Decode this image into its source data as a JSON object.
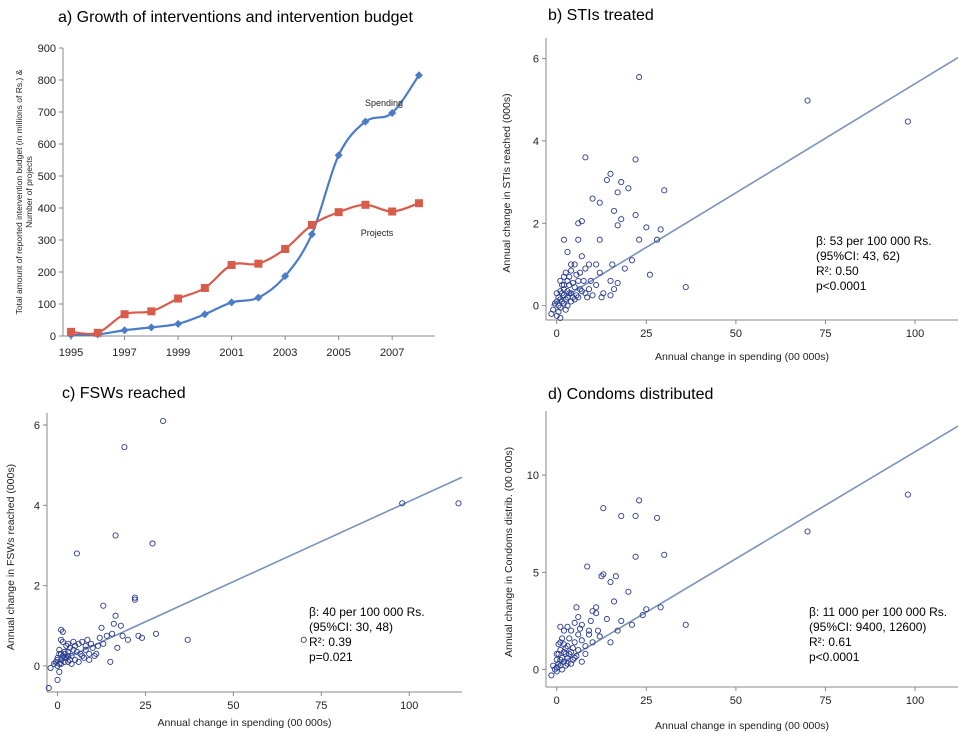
{
  "chart_data": [
    {
      "type": "line",
      "title": "a) Growth of interventions and intervention budget",
      "ylabel_line1": "Total amount of reported intervention budget (in millions of Rs.) &",
      "ylabel_line2": "Number of projects",
      "xlim": [
        1994.7,
        2008.6
      ],
      "ylim": [
        0,
        900
      ],
      "yticks": [
        "0",
        "100",
        "200",
        "300",
        "400",
        "500",
        "600",
        "700",
        "800",
        "900"
      ],
      "xticks": [
        "1995",
        "1997",
        "1999",
        "2001",
        "2003",
        "2005",
        "2007"
      ],
      "x": [
        1995,
        1996,
        1997,
        1998,
        1999,
        2000,
        2001,
        2002,
        2003,
        2004,
        2005,
        2006,
        2007,
        2008
      ],
      "series": [
        {
          "name": "Spending",
          "color": "#4a7cc7",
          "marker": "diamond",
          "values": [
            3,
            5,
            18,
            27,
            38,
            68,
            105,
            120,
            187,
            318,
            565,
            670,
            697,
            815
          ]
        },
        {
          "name": "Projects",
          "color": "#d95c4b",
          "marker": "square",
          "values": [
            13,
            10,
            68,
            77,
            117,
            150,
            222,
            226,
            272,
            347,
            387,
            410,
            389,
            415
          ]
        }
      ],
      "legend_labels": {
        "spending": "Spending",
        "projects": "Projects"
      }
    },
    {
      "type": "scatter",
      "title": "b) STIs treated",
      "xlabel": "Annual change in spending (00 000s)",
      "ylabel": "Annual change in STIs reached (000s)",
      "xlim": [
        -3,
        112
      ],
      "ylim": [
        -0.35,
        6.5
      ],
      "xticks": [
        "0",
        "25",
        "50",
        "75",
        "100"
      ],
      "yticks": [
        "0",
        "2",
        "4",
        "6"
      ],
      "fit": {
        "intercept": 0.09,
        "slope": 0.053
      },
      "stats": {
        "beta": "β: 53 per 100 000 Rs.",
        "ci": "(95%CI: 43, 62)",
        "r2": "R²: 0.50",
        "p": "p<0.0001"
      },
      "points": [
        [
          -1.5,
          -0.2
        ],
        [
          -1,
          -0.1
        ],
        [
          -0.5,
          0.05
        ],
        [
          0,
          0.1
        ],
        [
          0.5,
          0.0
        ],
        [
          0.5,
          0.2
        ],
        [
          1,
          0.15
        ],
        [
          1,
          -0.05
        ],
        [
          1.5,
          0.3
        ],
        [
          1.5,
          0.1
        ],
        [
          2,
          0.05
        ],
        [
          2,
          0.25
        ],
        [
          2,
          0.4
        ],
        [
          2.5,
          0.15
        ],
        [
          2.5,
          -0.1
        ],
        [
          3,
          0.6
        ],
        [
          3,
          0.35
        ],
        [
          3,
          0.2
        ],
        [
          3.5,
          0.7
        ],
        [
          3.5,
          0.5
        ],
        [
          4,
          0.3
        ],
        [
          4,
          0.85
        ],
        [
          4.5,
          0.2
        ],
        [
          5,
          1.0
        ],
        [
          5,
          0.45
        ],
        [
          5.5,
          0.75
        ],
        [
          6,
          0.2
        ],
        [
          6,
          1.6
        ],
        [
          6,
          2.0
        ],
        [
          6.5,
          0.4
        ],
        [
          7,
          2.05
        ],
        [
          7,
          1.2
        ],
        [
          7.5,
          0.6
        ],
        [
          8,
          0.3
        ],
        [
          8,
          3.6
        ],
        [
          8.5,
          0.2
        ],
        [
          9,
          0.4
        ],
        [
          9,
          1.0
        ],
        [
          10,
          0.25
        ],
        [
          10,
          2.6
        ],
        [
          11,
          1.0
        ],
        [
          11,
          0.5
        ],
        [
          12,
          0.8
        ],
        [
          12,
          1.6
        ],
        [
          12,
          2.5
        ],
        [
          13,
          0.3
        ],
        [
          14,
          3.05
        ],
        [
          15,
          0.25
        ],
        [
          15,
          3.2
        ],
        [
          15,
          0.6
        ],
        [
          16,
          2.3
        ],
        [
          16,
          0.4
        ],
        [
          17,
          0.55
        ],
        [
          17,
          2.75
        ],
        [
          17,
          1.95
        ],
        [
          18,
          2.1
        ],
        [
          18,
          3.0
        ],
        [
          19,
          0.9
        ],
        [
          20,
          2.85
        ],
        [
          21,
          1.1
        ],
        [
          22,
          2.2
        ],
        [
          22,
          3.55
        ],
        [
          23,
          5.55
        ],
        [
          23,
          1.6
        ],
        [
          25,
          1.9
        ],
        [
          26,
          0.75
        ],
        [
          28,
          1.6
        ],
        [
          29,
          1.85
        ],
        [
          30,
          2.8
        ],
        [
          36,
          0.45
        ],
        [
          70,
          4.98
        ],
        [
          98,
          4.47
        ],
        [
          0,
          -0.25
        ],
        [
          1,
          -0.3
        ],
        [
          2,
          0.5
        ],
        [
          3,
          0.0
        ],
        [
          4,
          0.1
        ],
        [
          5,
          0.15
        ],
        [
          6,
          0.6
        ],
        [
          7,
          0.35
        ],
        [
          1,
          0.35
        ],
        [
          2,
          0.7
        ],
        [
          0.5,
          -0.15
        ],
        [
          1.5,
          0.5
        ],
        [
          3.5,
          0.3
        ],
        [
          4.5,
          0.55
        ],
        [
          5.5,
          0.25
        ],
        [
          6.5,
          0.8
        ],
        [
          8,
          0.9
        ],
        [
          9.5,
          0.6
        ],
        [
          2,
          1.6
        ],
        [
          3,
          1.3
        ],
        [
          12.5,
          0.2
        ],
        [
          15.5,
          1.0
        ],
        [
          0,
          0.3
        ],
        [
          1,
          0.6
        ],
        [
          2.5,
          0.8
        ],
        [
          4,
          1.0
        ]
      ]
    },
    {
      "type": "scatter",
      "title": "c) FSWs reached",
      "xlabel": "Annual change in spending (00 000s)",
      "ylabel": "Annual change in FSWs reached (000s)",
      "xlim": [
        -3,
        115
      ],
      "ylim": [
        -0.65,
        6.3
      ],
      "xticks": [
        "0",
        "25",
        "50",
        "75",
        "100"
      ],
      "yticks": [
        "0",
        "2",
        "4",
        "6"
      ],
      "fit": {
        "intercept": 0.1,
        "slope": 0.04
      },
      "stats": {
        "beta": "β: 40 per 100 000 Rs.",
        "ci": "(95%CI: 30, 48)",
        "r2": "R²: 0.39",
        "p": "p=0.021"
      },
      "points": [
        [
          -2.5,
          -0.55
        ],
        [
          -2,
          -0.05
        ],
        [
          -1,
          0.05
        ],
        [
          -0.5,
          0.1
        ],
        [
          0,
          0.0
        ],
        [
          0,
          0.2
        ],
        [
          0.5,
          -0.15
        ],
        [
          0.5,
          0.3
        ],
        [
          0.5,
          0.05
        ],
        [
          1,
          0.9
        ],
        [
          1,
          0.65
        ],
        [
          1,
          0.15
        ],
        [
          1.5,
          0.85
        ],
        [
          1.5,
          0.25
        ],
        [
          2,
          0.1
        ],
        [
          2,
          0.3
        ],
        [
          2.5,
          0.2
        ],
        [
          2.5,
          0.5
        ],
        [
          3,
          0.1
        ],
        [
          3,
          0.35
        ],
        [
          3.5,
          0.45
        ],
        [
          4,
          0.25
        ],
        [
          4.5,
          0.6
        ],
        [
          5,
          0.5
        ],
        [
          5,
          0.15
        ],
        [
          5.5,
          2.8
        ],
        [
          5.5,
          0.35
        ],
        [
          6,
          0.55
        ],
        [
          6.5,
          0.3
        ],
        [
          7,
          0.6
        ],
        [
          7.5,
          0.2
        ],
        [
          8,
          0.4
        ],
        [
          8.5,
          0.65
        ],
        [
          9,
          0.3
        ],
        [
          9.5,
          0.55
        ],
        [
          10,
          0.45
        ],
        [
          11,
          0.3
        ],
        [
          12,
          0.7
        ],
        [
          12.5,
          0.95
        ],
        [
          13,
          1.5
        ],
        [
          13,
          0.55
        ],
        [
          14,
          0.75
        ],
        [
          15,
          0.1
        ],
        [
          15.5,
          0.8
        ],
        [
          16,
          1.05
        ],
        [
          16.5,
          3.25
        ],
        [
          16.5,
          1.25
        ],
        [
          17,
          0.45
        ],
        [
          18,
          1.0
        ],
        [
          18.5,
          0.75
        ],
        [
          19,
          5.45
        ],
        [
          20,
          0.65
        ],
        [
          22,
          1.65
        ],
        [
          22,
          1.7
        ],
        [
          23,
          0.75
        ],
        [
          24,
          0.7
        ],
        [
          27,
          3.05
        ],
        [
          28,
          0.8
        ],
        [
          30,
          6.1
        ],
        [
          37,
          0.65
        ],
        [
          70,
          0.65
        ],
        [
          98,
          4.05
        ],
        [
          114,
          4.05
        ],
        [
          0,
          -0.35
        ],
        [
          1,
          0.05
        ],
        [
          2,
          0.2
        ],
        [
          3,
          0.55
        ],
        [
          4,
          0.05
        ],
        [
          6,
          0.1
        ],
        [
          7,
          0.25
        ],
        [
          0.5,
          0.4
        ],
        [
          1.5,
          0.6
        ],
        [
          3.5,
          0.15
        ],
        [
          4.5,
          0.4
        ],
        [
          8,
          0.5
        ],
        [
          9,
          0.15
        ],
        [
          10.5,
          0.25
        ],
        [
          11.5,
          0.5
        ],
        [
          2,
          0.35
        ],
        [
          3,
          0.25
        ],
        [
          0,
          0.15
        ],
        [
          1,
          0.3
        ]
      ]
    },
    {
      "type": "scatter",
      "title": "d) Condoms distributed",
      "xlabel": "Annual change in spending (00 000s)",
      "ylabel": "Annual change in Condoms distrib. (00 000s)",
      "xlim": [
        -3,
        112
      ],
      "ylim": [
        -0.9,
        13.3
      ],
      "xticks": [
        "0",
        "25",
        "50",
        "75",
        "100"
      ],
      "yticks": [
        "0",
        "5",
        "10"
      ],
      "fit": {
        "intercept": 0.2,
        "slope": 0.11
      },
      "stats": {
        "beta": "β: 11 000 per 100 000 Rs.",
        "ci": "(95%CI: 9400, 12600)",
        "r2": "R²: 0.61",
        "p": "p<0.0001"
      },
      "points": [
        [
          -1.5,
          -0.3
        ],
        [
          -1,
          0.2
        ],
        [
          -0.5,
          0.0
        ],
        [
          0,
          0.5
        ],
        [
          0,
          -0.1
        ],
        [
          0.5,
          0.3
        ],
        [
          0.5,
          0.8
        ],
        [
          1,
          1.0
        ],
        [
          1,
          0.2
        ],
        [
          1,
          2.2
        ],
        [
          1.5,
          0.6
        ],
        [
          1.5,
          0.0
        ],
        [
          2,
          1.3
        ],
        [
          2,
          0.4
        ],
        [
          2.5,
          0.8
        ],
        [
          2.5,
          1.1
        ],
        [
          3,
          2.2
        ],
        [
          3,
          0.3
        ],
        [
          3.5,
          1.6
        ],
        [
          4,
          0.9
        ],
        [
          4,
          2.0
        ],
        [
          4.5,
          0.5
        ],
        [
          5,
          2.4
        ],
        [
          5,
          1.4
        ],
        [
          5.5,
          3.2
        ],
        [
          5.5,
          0.7
        ],
        [
          6,
          2.7
        ],
        [
          6,
          1.0
        ],
        [
          6.5,
          2.1
        ],
        [
          7,
          1.5
        ],
        [
          7,
          0.4
        ],
        [
          8,
          1.2
        ],
        [
          8.5,
          5.3
        ],
        [
          9,
          2.0
        ],
        [
          9.5,
          2.5
        ],
        [
          10,
          1.4
        ],
        [
          11,
          2.9
        ],
        [
          11,
          3.2
        ],
        [
          12,
          1.7
        ],
        [
          12.5,
          4.8
        ],
        [
          13,
          4.9
        ],
        [
          13,
          8.3
        ],
        [
          14,
          2.6
        ],
        [
          15,
          1.4
        ],
        [
          15,
          4.5
        ],
        [
          16,
          3.5
        ],
        [
          16.5,
          4.8
        ],
        [
          17,
          2.0
        ],
        [
          18,
          2.5
        ],
        [
          18,
          7.9
        ],
        [
          20,
          4.0
        ],
        [
          21,
          2.3
        ],
        [
          22,
          5.8
        ],
        [
          22,
          7.9
        ],
        [
          23,
          8.7
        ],
        [
          24,
          2.8
        ],
        [
          25,
          3.1
        ],
        [
          28,
          7.8
        ],
        [
          29,
          3.2
        ],
        [
          30,
          5.9
        ],
        [
          36,
          2.3
        ],
        [
          70,
          7.1
        ],
        [
          98,
          9.0
        ],
        [
          0,
          0.1
        ],
        [
          1,
          0.5
        ],
        [
          2,
          0.9
        ],
        [
          3,
          1.2
        ],
        [
          4,
          0.3
        ],
        [
          5,
          0.6
        ],
        [
          6,
          1.8
        ],
        [
          7,
          2.3
        ],
        [
          0.5,
          1.3
        ],
        [
          1.5,
          1.6
        ],
        [
          2.5,
          0.2
        ],
        [
          3.5,
          0.8
        ],
        [
          4.5,
          1.1
        ],
        [
          8,
          0.8
        ],
        [
          9,
          1.8
        ],
        [
          10,
          3.0
        ],
        [
          11.5,
          2.0
        ],
        [
          0,
          0.8
        ],
        [
          1,
          1.4
        ],
        [
          2,
          2.0
        ],
        [
          3,
          0.6
        ]
      ]
    }
  ]
}
